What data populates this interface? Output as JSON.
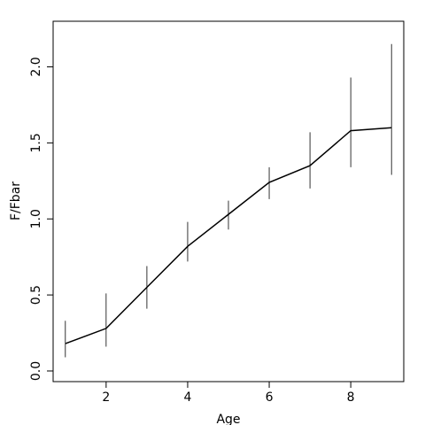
{
  "chart_data": {
    "type": "line",
    "title": "",
    "xlabel": "Age",
    "ylabel": "F/Fbar",
    "xlim": [
      0.7,
      9.3
    ],
    "ylim": [
      -0.07,
      2.3
    ],
    "x_ticks": [
      2,
      4,
      6,
      8
    ],
    "x_tick_labels": [
      "2",
      "4",
      "6",
      "8"
    ],
    "y_ticks": [
      0.0,
      0.5,
      1.0,
      1.5,
      2.0
    ],
    "y_tick_labels": [
      "0.0",
      "0.5",
      "1.0",
      "1.5",
      "2.0"
    ],
    "grid": false,
    "legend": "none",
    "series": [
      {
        "x": [
          1,
          2,
          3,
          4,
          5,
          6,
          7,
          8,
          9
        ],
        "y": [
          0.18,
          0.28,
          0.55,
          0.82,
          1.03,
          1.24,
          1.35,
          1.58,
          1.6
        ],
        "lower": [
          0.09,
          0.16,
          0.41,
          0.72,
          0.93,
          1.13,
          1.2,
          1.34,
          1.29
        ],
        "upper": [
          0.33,
          0.51,
          0.69,
          0.98,
          1.12,
          1.34,
          1.57,
          1.93,
          2.15
        ]
      }
    ],
    "colors": {
      "line": "#000000",
      "error_bar": "#000000",
      "frame": "#000000"
    }
  }
}
